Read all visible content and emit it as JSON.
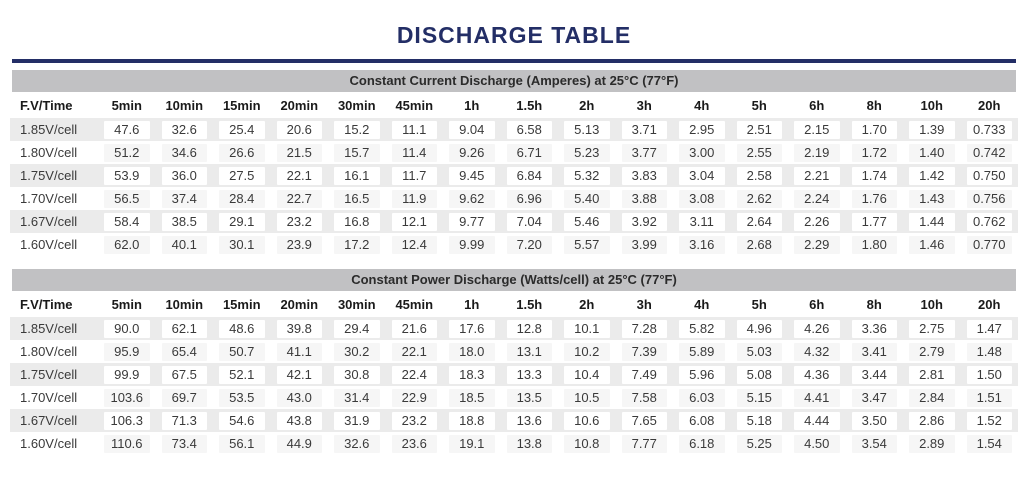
{
  "page_title": "DISCHARGE TABLE",
  "colors": {
    "accent_navy": "#232e66",
    "section_bar_gray": "#c1c1c3",
    "row_stripe_gray": "#ebebeb",
    "text_dark": "#3a3a3a"
  },
  "chart_data": [
    {
      "type": "table",
      "title": "Constant Current Discharge (Amperes) at 25°C (77°F)",
      "columns": [
        "F.V/Time",
        "5min",
        "10min",
        "15min",
        "20min",
        "30min",
        "45min",
        "1h",
        "1.5h",
        "2h",
        "3h",
        "4h",
        "5h",
        "6h",
        "8h",
        "10h",
        "20h"
      ],
      "rows": [
        {
          "label": "1.85V/cell",
          "values": [
            "47.6",
            "32.6",
            "25.4",
            "20.6",
            "15.2",
            "11.1",
            "9.04",
            "6.58",
            "5.13",
            "3.71",
            "2.95",
            "2.51",
            "2.15",
            "1.70",
            "1.39",
            "0.733"
          ]
        },
        {
          "label": "1.80V/cell",
          "values": [
            "51.2",
            "34.6",
            "26.6",
            "21.5",
            "15.7",
            "11.4",
            "9.26",
            "6.71",
            "5.23",
            "3.77",
            "3.00",
            "2.55",
            "2.19",
            "1.72",
            "1.40",
            "0.742"
          ]
        },
        {
          "label": "1.75V/cell",
          "values": [
            "53.9",
            "36.0",
            "27.5",
            "22.1",
            "16.1",
            "11.7",
            "9.45",
            "6.84",
            "5.32",
            "3.83",
            "3.04",
            "2.58",
            "2.21",
            "1.74",
            "1.42",
            "0.750"
          ]
        },
        {
          "label": "1.70V/cell",
          "values": [
            "56.5",
            "37.4",
            "28.4",
            "22.7",
            "16.5",
            "11.9",
            "9.62",
            "6.96",
            "5.40",
            "3.88",
            "3.08",
            "2.62",
            "2.24",
            "1.76",
            "1.43",
            "0.756"
          ]
        },
        {
          "label": "1.67V/cell",
          "values": [
            "58.4",
            "38.5",
            "29.1",
            "23.2",
            "16.8",
            "12.1",
            "9.77",
            "7.04",
            "5.46",
            "3.92",
            "3.11",
            "2.64",
            "2.26",
            "1.77",
            "1.44",
            "0.762"
          ]
        },
        {
          "label": "1.60V/cell",
          "values": [
            "62.0",
            "40.1",
            "30.1",
            "23.9",
            "17.2",
            "12.4",
            "9.99",
            "7.20",
            "5.57",
            "3.99",
            "3.16",
            "2.68",
            "2.29",
            "1.80",
            "1.46",
            "0.770"
          ]
        }
      ]
    },
    {
      "type": "table",
      "title": "Constant Power Discharge (Watts/cell) at 25°C (77°F)",
      "columns": [
        "F.V/Time",
        "5min",
        "10min",
        "15min",
        "20min",
        "30min",
        "45min",
        "1h",
        "1.5h",
        "2h",
        "3h",
        "4h",
        "5h",
        "6h",
        "8h",
        "10h",
        "20h"
      ],
      "rows": [
        {
          "label": "1.85V/cell",
          "values": [
            "90.0",
            "62.1",
            "48.6",
            "39.8",
            "29.4",
            "21.6",
            "17.6",
            "12.8",
            "10.1",
            "7.28",
            "5.82",
            "4.96",
            "4.26",
            "3.36",
            "2.75",
            "1.47"
          ]
        },
        {
          "label": "1.80V/cell",
          "values": [
            "95.9",
            "65.4",
            "50.7",
            "41.1",
            "30.2",
            "22.1",
            "18.0",
            "13.1",
            "10.2",
            "7.39",
            "5.89",
            "5.03",
            "4.32",
            "3.41",
            "2.79",
            "1.48"
          ]
        },
        {
          "label": "1.75V/cell",
          "values": [
            "99.9",
            "67.5",
            "52.1",
            "42.1",
            "30.8",
            "22.4",
            "18.3",
            "13.3",
            "10.4",
            "7.49",
            "5.96",
            "5.08",
            "4.36",
            "3.44",
            "2.81",
            "1.50"
          ]
        },
        {
          "label": "1.70V/cell",
          "values": [
            "103.6",
            "69.7",
            "53.5",
            "43.0",
            "31.4",
            "22.9",
            "18.5",
            "13.5",
            "10.5",
            "7.58",
            "6.03",
            "5.15",
            "4.41",
            "3.47",
            "2.84",
            "1.51"
          ]
        },
        {
          "label": "1.67V/cell",
          "values": [
            "106.3",
            "71.3",
            "54.6",
            "43.8",
            "31.9",
            "23.2",
            "18.8",
            "13.6",
            "10.6",
            "7.65",
            "6.08",
            "5.18",
            "4.44",
            "3.50",
            "2.86",
            "1.52"
          ]
        },
        {
          "label": "1.60V/cell",
          "values": [
            "110.6",
            "73.4",
            "56.1",
            "44.9",
            "32.6",
            "23.6",
            "19.1",
            "13.8",
            "10.8",
            "7.77",
            "6.18",
            "5.25",
            "4.50",
            "3.54",
            "2.89",
            "1.54"
          ]
        }
      ]
    }
  ]
}
